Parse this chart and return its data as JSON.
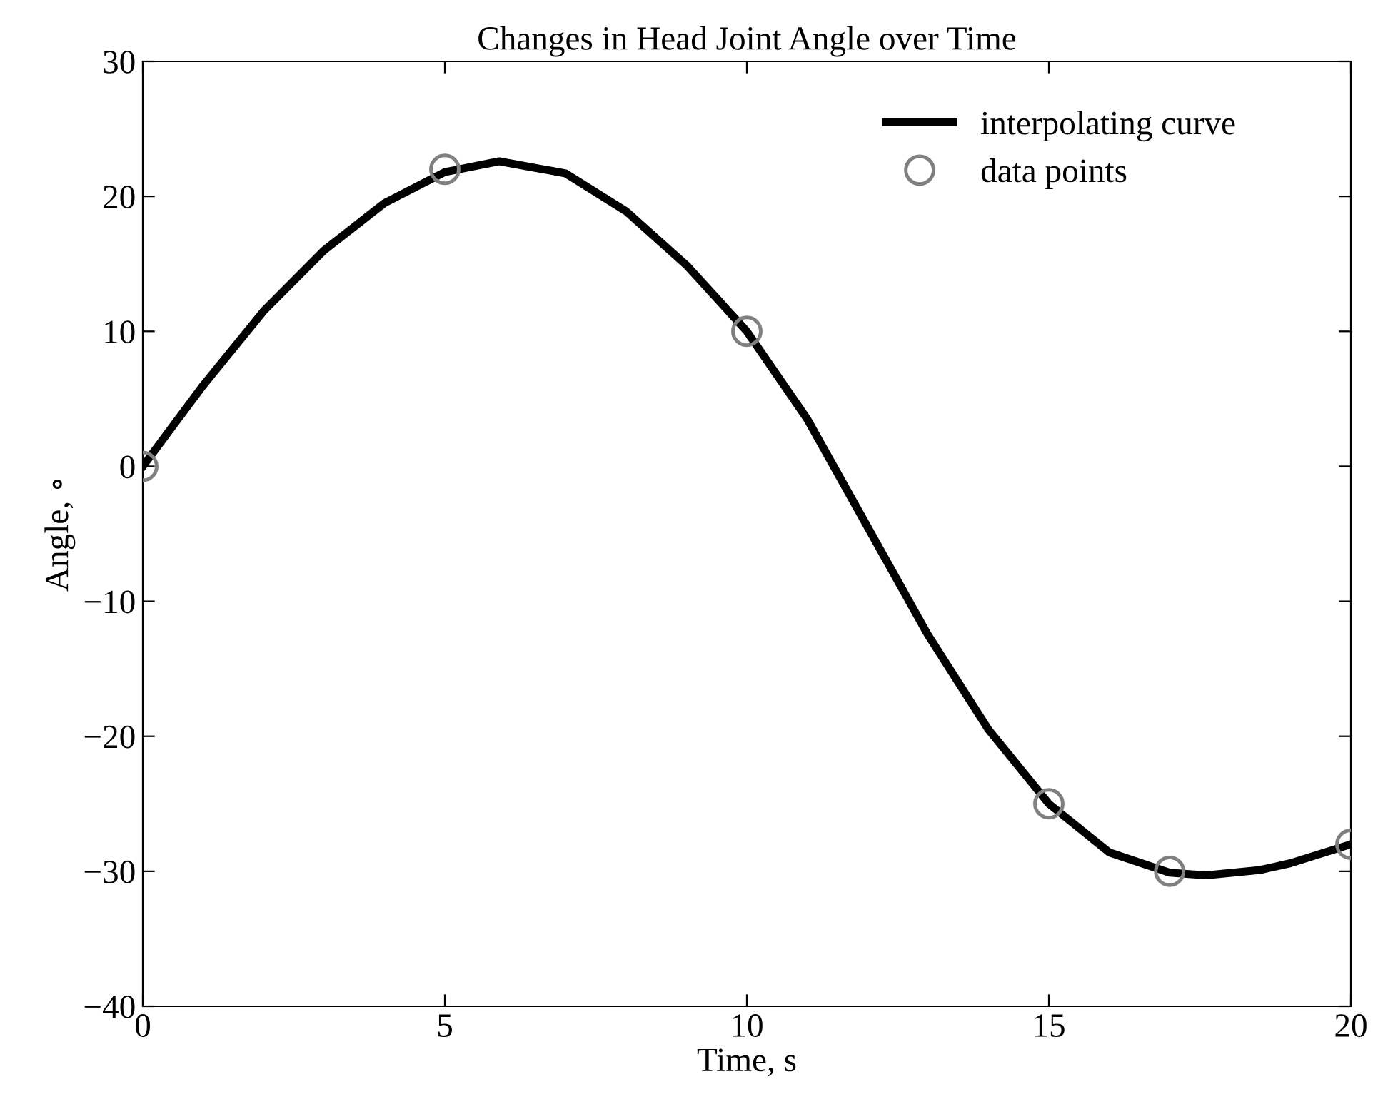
{
  "chart_data": {
    "type": "line",
    "title": "Changes in Head Joint Angle over Time",
    "xlabel": "Time, s",
    "ylabel": "Angle, ∘",
    "xlim": [
      0,
      20
    ],
    "ylim": [
      -40,
      30
    ],
    "xticks": [
      0,
      5,
      10,
      15,
      20
    ],
    "yticks": [
      -40,
      -30,
      -20,
      -10,
      0,
      10,
      20,
      30
    ],
    "grid": false,
    "legend": "top right",
    "series": [
      {
        "name": "interpolating curve",
        "color": "#000000",
        "marker": "none",
        "line_style": "solid",
        "x": [
          0,
          1,
          2,
          3,
          4,
          5,
          5.9,
          7,
          8,
          9,
          10,
          11,
          12,
          13,
          14,
          15,
          16,
          17,
          17.6,
          18.5,
          19,
          20
        ],
        "values": [
          0,
          6,
          11.5,
          16,
          19.5,
          21.8,
          22.6,
          21.7,
          18.9,
          14.9,
          10,
          3.5,
          -4.5,
          -12.5,
          -19.5,
          -25,
          -28.6,
          -30.1,
          -30.3,
          -29.9,
          -29.4,
          -28
        ]
      },
      {
        "name": "data points",
        "type": "scatter",
        "color": "#808080",
        "marker": "circle",
        "x": [
          0,
          5,
          10,
          15,
          17,
          20
        ],
        "values": [
          0,
          22,
          10,
          -25,
          -30,
          -28
        ]
      }
    ]
  }
}
